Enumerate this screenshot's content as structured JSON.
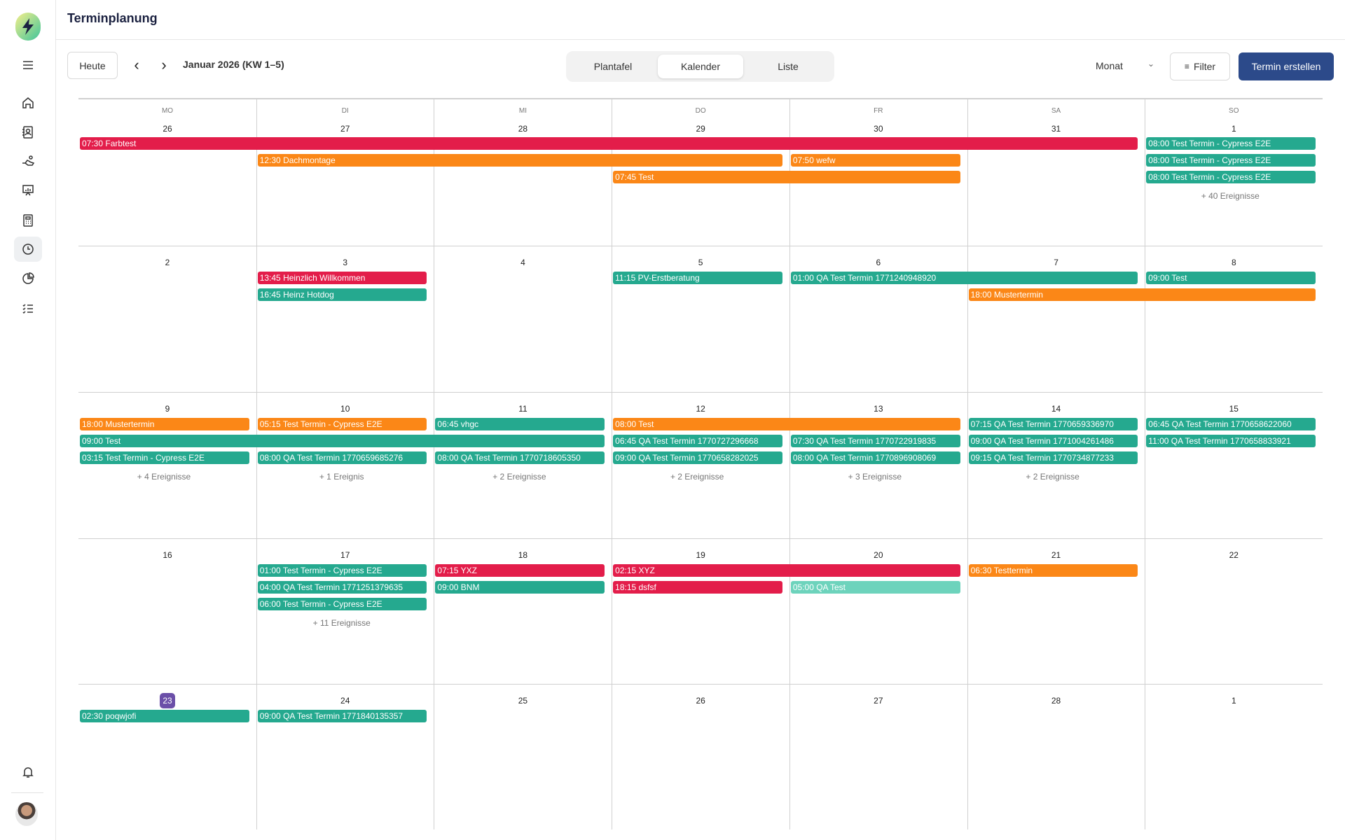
{
  "header": {
    "title": "Terminplanung"
  },
  "sidebar": {
    "items": [
      {
        "icon": "menu-icon"
      },
      {
        "icon": "home-icon"
      },
      {
        "icon": "contacts-icon"
      },
      {
        "icon": "handshake-icon"
      },
      {
        "icon": "presentation-icon"
      },
      {
        "icon": "calculator-icon"
      },
      {
        "icon": "clock-icon",
        "active": true
      },
      {
        "icon": "pie-chart-icon"
      },
      {
        "icon": "checklist-icon"
      }
    ],
    "bottom": [
      {
        "icon": "bell-icon"
      },
      {
        "icon": "avatar"
      }
    ]
  },
  "toolbar": {
    "today": "Heute",
    "range": "Januar 2026 (KW 1–5)",
    "views": [
      "Plantafel",
      "Kalender",
      "Liste"
    ],
    "active_view": "Kalender",
    "period": "Monat",
    "filter": "Filter",
    "create": "Termin erstellen"
  },
  "colors": {
    "red": "#e31d4a",
    "orange": "#fb8717",
    "teal": "#25a98f",
    "lightteal": "#6dd3bc",
    "today": "#6b4fa8",
    "primary": "#2c4a8a"
  },
  "calendar": {
    "weekdays": [
      "MO",
      "DI",
      "MI",
      "DO",
      "FR",
      "SA",
      "SO"
    ],
    "today": "23",
    "weeks": [
      {
        "days": [
          "26",
          "27",
          "28",
          "29",
          "30",
          "31",
          "1"
        ],
        "events": [
          {
            "label": "07:30 Farbtest",
            "col": 0,
            "span": 6,
            "lane": 0,
            "color": "red"
          },
          {
            "label": "08:00 Test Termin - Cypress E2E",
            "col": 6,
            "span": 1,
            "lane": 0,
            "color": "teal"
          },
          {
            "label": "12:30 Dachmontage",
            "col": 1,
            "span": 3,
            "lane": 1,
            "color": "orange"
          },
          {
            "label": "07:50 wefw",
            "col": 4,
            "span": 1,
            "lane": 1,
            "color": "orange"
          },
          {
            "label": "08:00 Test Termin - Cypress E2E",
            "col": 6,
            "span": 1,
            "lane": 1,
            "color": "teal"
          },
          {
            "label": "07:45 Test",
            "col": 3,
            "span": 2,
            "lane": 2,
            "color": "orange"
          },
          {
            "label": "08:00 Test Termin - Cypress E2E",
            "col": 6,
            "span": 1,
            "lane": 2,
            "color": "teal"
          }
        ],
        "more": [
          {
            "col": 6,
            "label": "+ 40 Ereignisse"
          }
        ]
      },
      {
        "days": [
          "2",
          "3",
          "4",
          "5",
          "6",
          "7",
          "8"
        ],
        "events": [
          {
            "label": "13:45 Heinzlich Willkommen",
            "col": 1,
            "span": 1,
            "lane": 0,
            "color": "red"
          },
          {
            "label": "11:15 PV-Erstberatung",
            "col": 3,
            "span": 1,
            "lane": 0,
            "color": "teal"
          },
          {
            "label": "01:00 QA Test Termin 1771240948920",
            "col": 4,
            "span": 2,
            "lane": 0,
            "color": "teal"
          },
          {
            "label": "09:00 Test",
            "col": 6,
            "span": 1,
            "lane": 0,
            "color": "teal"
          },
          {
            "label": "16:45 Heinz Hotdog",
            "col": 1,
            "span": 1,
            "lane": 1,
            "color": "teal"
          },
          {
            "label": "18:00 Mustertermin",
            "col": 5,
            "span": 2,
            "lane": 1,
            "color": "orange"
          }
        ],
        "more": []
      },
      {
        "days": [
          "9",
          "10",
          "11",
          "12",
          "13",
          "14",
          "15"
        ],
        "events": [
          {
            "label": "18:00 Mustertermin",
            "col": 0,
            "span": 1,
            "lane": 0,
            "color": "orange"
          },
          {
            "label": "05:15 Test Termin - Cypress E2E",
            "col": 1,
            "span": 1,
            "lane": 0,
            "color": "orange"
          },
          {
            "label": "06:45 vhgc",
            "col": 2,
            "span": 1,
            "lane": 0,
            "color": "teal"
          },
          {
            "label": "08:00 Test",
            "col": 3,
            "span": 2,
            "lane": 0,
            "color": "orange"
          },
          {
            "label": "07:15 QA Test Termin 1770659336970",
            "col": 5,
            "span": 1,
            "lane": 0,
            "color": "teal"
          },
          {
            "label": "06:45 QA Test Termin 1770658622060",
            "col": 6,
            "span": 1,
            "lane": 0,
            "color": "teal"
          },
          {
            "label": "09:00 Test",
            "col": 0,
            "span": 3,
            "lane": 1,
            "color": "teal"
          },
          {
            "label": "06:45 QA Test Termin 1770727296668",
            "col": 3,
            "span": 1,
            "lane": 1,
            "color": "teal"
          },
          {
            "label": "07:30 QA Test Termin 1770722919835",
            "col": 4,
            "span": 1,
            "lane": 1,
            "color": "teal"
          },
          {
            "label": "09:00 QA Test Termin 1771004261486",
            "col": 5,
            "span": 1,
            "lane": 1,
            "color": "teal"
          },
          {
            "label": "11:00 QA Test Termin 1770658833921",
            "col": 6,
            "span": 1,
            "lane": 1,
            "color": "teal"
          },
          {
            "label": "03:15 Test Termin - Cypress E2E",
            "col": 0,
            "span": 1,
            "lane": 2,
            "color": "teal"
          },
          {
            "label": "08:00 QA Test Termin 1770659685276",
            "col": 1,
            "span": 1,
            "lane": 2,
            "color": "teal"
          },
          {
            "label": "08:00 QA Test Termin 1770718605350",
            "col": 2,
            "span": 1,
            "lane": 2,
            "color": "teal"
          },
          {
            "label": "09:00 QA Test Termin 1770658282025",
            "col": 3,
            "span": 1,
            "lane": 2,
            "color": "teal"
          },
          {
            "label": "08:00 QA Test Termin 1770896908069",
            "col": 4,
            "span": 1,
            "lane": 2,
            "color": "teal"
          },
          {
            "label": "09:15 QA Test Termin 1770734877233",
            "col": 5,
            "span": 1,
            "lane": 2,
            "color": "teal"
          }
        ],
        "more": [
          {
            "col": 0,
            "label": "+ 4 Ereignisse"
          },
          {
            "col": 1,
            "label": "+ 1 Ereignis"
          },
          {
            "col": 2,
            "label": "+ 2 Ereignisse"
          },
          {
            "col": 3,
            "label": "+ 2 Ereignisse"
          },
          {
            "col": 4,
            "label": "+ 3 Ereignisse"
          },
          {
            "col": 5,
            "label": "+ 2 Ereignisse"
          }
        ]
      },
      {
        "days": [
          "16",
          "17",
          "18",
          "19",
          "20",
          "21",
          "22"
        ],
        "events": [
          {
            "label": "01:00 Test Termin - Cypress E2E",
            "col": 1,
            "span": 1,
            "lane": 0,
            "color": "teal"
          },
          {
            "label": "07:15 YXZ",
            "col": 2,
            "span": 1,
            "lane": 0,
            "color": "red"
          },
          {
            "label": "02:15 XYZ",
            "col": 3,
            "span": 2,
            "lane": 0,
            "color": "red"
          },
          {
            "label": "06:30 Testtermin",
            "col": 5,
            "span": 1,
            "lane": 0,
            "color": "orange"
          },
          {
            "label": "04:00 QA Test Termin 1771251379635",
            "col": 1,
            "span": 1,
            "lane": 1,
            "color": "teal"
          },
          {
            "label": "09:00 BNM",
            "col": 2,
            "span": 1,
            "lane": 1,
            "color": "teal"
          },
          {
            "label": "18:15 dsfsf",
            "col": 3,
            "span": 1,
            "lane": 1,
            "color": "red"
          },
          {
            "label": "05:00 QA Test",
            "col": 4,
            "span": 1,
            "lane": 1,
            "color": "lightteal"
          },
          {
            "label": "06:00 Test Termin - Cypress E2E",
            "col": 1,
            "span": 1,
            "lane": 2,
            "color": "teal"
          }
        ],
        "more": [
          {
            "col": 1,
            "label": "+ 11 Ereignisse"
          }
        ]
      },
      {
        "days": [
          "23",
          "24",
          "25",
          "26",
          "27",
          "28",
          "1"
        ],
        "events": [
          {
            "label": "02:30 poqwjofi",
            "col": 0,
            "span": 1,
            "lane": 0,
            "color": "teal"
          },
          {
            "label": "09:00 QA Test Termin 1771840135357",
            "col": 1,
            "span": 1,
            "lane": 0,
            "color": "teal"
          }
        ],
        "more": []
      }
    ]
  }
}
